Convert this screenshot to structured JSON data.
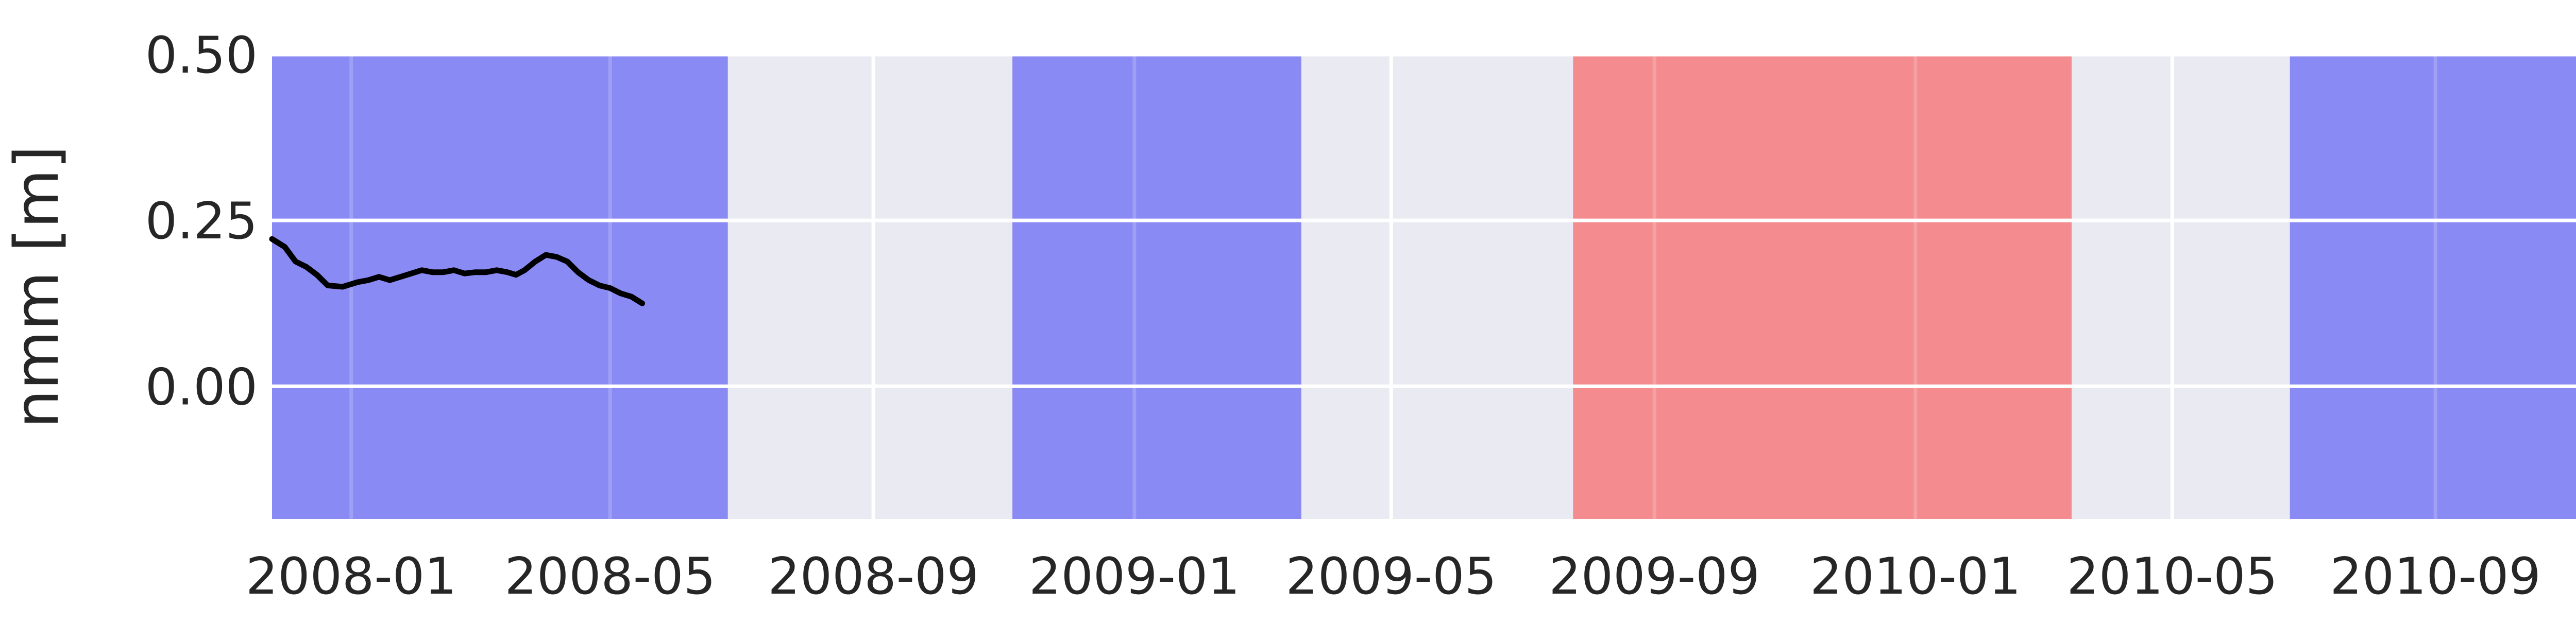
{
  "chart_data": {
    "type": "line",
    "title": "",
    "xlabel": "",
    "ylabel": "nmm [m]",
    "xlim": [
      "2007-11-25",
      "2010-12-20"
    ],
    "ylim": [
      -0.2,
      0.5
    ],
    "grid": true,
    "x_ticks": [
      "2008-01",
      "2008-05",
      "2008-09",
      "2009-01",
      "2009-05",
      "2009-09",
      "2010-01",
      "2010-05",
      "2010-09"
    ],
    "y_ticks": [
      0.0,
      0.25,
      0.5
    ],
    "y_tick_labels": [
      "0.00",
      "0.25",
      "0.50"
    ],
    "colors": {
      "plot_bg": "#eaeaf2",
      "grid": "#ffffff",
      "text": "#262626",
      "line": "#000000"
    },
    "shaded_periods": [
      {
        "start": "2007-11-25",
        "end": "2008-06-25",
        "color": "#8a8af5"
      },
      {
        "start": "2008-11-05",
        "end": "2009-03-20",
        "color": "#8a8af5"
      },
      {
        "start": "2009-07-25",
        "end": "2010-03-15",
        "color": "#f48c8f"
      },
      {
        "start": "2010-06-25",
        "end": "2010-12-20",
        "color": "#8a8af5"
      }
    ],
    "series": [
      {
        "color": "#000000",
        "x": [
          "2007-11-25",
          "2007-12-01",
          "2007-12-06",
          "2007-12-11",
          "2007-12-16",
          "2007-12-21",
          "2007-12-28",
          "2008-01-04",
          "2008-01-09",
          "2008-01-14",
          "2008-01-19",
          "2008-01-24",
          "2008-01-29",
          "2008-02-03",
          "2008-02-08",
          "2008-02-13",
          "2008-02-18",
          "2008-02-23",
          "2008-02-28",
          "2008-03-04",
          "2008-03-09",
          "2008-03-14",
          "2008-03-18",
          "2008-03-22",
          "2008-03-27",
          "2008-04-01",
          "2008-04-06",
          "2008-04-11",
          "2008-04-16",
          "2008-04-21",
          "2008-04-26",
          "2008-05-01",
          "2008-05-06",
          "2008-05-11",
          "2008-05-16"
        ],
        "y": [
          0.222,
          0.21,
          0.188,
          0.18,
          0.168,
          0.152,
          0.15,
          0.157,
          0.16,
          0.165,
          0.16,
          0.165,
          0.17,
          0.175,
          0.172,
          0.172,
          0.175,
          0.17,
          0.172,
          0.172,
          0.175,
          0.172,
          0.168,
          0.175,
          0.188,
          0.198,
          0.195,
          0.188,
          0.172,
          0.16,
          0.152,
          0.148,
          0.14,
          0.135,
          0.125
        ]
      }
    ]
  }
}
